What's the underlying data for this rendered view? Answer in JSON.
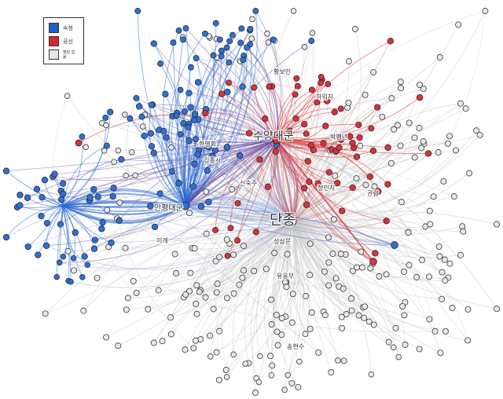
{
  "legend": {
    "items": [
      {
        "label": "숙청",
        "color": "#1f5fc8"
      },
      {
        "label": "공신",
        "color": "#d8262e"
      },
      {
        "label": "해당 없음",
        "color": "#e6e6e6"
      }
    ]
  },
  "colors": {
    "blue_node": "#2f6fd6",
    "red_node": "#d8323a",
    "gray_node": "#e8e8e8",
    "blue_edge": "#2a68d0",
    "red_edge": "#d83a3f",
    "purple_edge": "#6a4a9e",
    "gray_edge": "#c8c8c8"
  },
  "labels": {
    "danjong": "단종",
    "suyang": "수양대군",
    "anpyeong": "안평대군",
    "l1": "한명회",
    "l2": "김종서",
    "l3": "황보인",
    "l4": "정인지",
    "l5": "박팽년",
    "l6": "성삼문",
    "l7": "유응부",
    "l8": "송현수",
    "l9": "권람",
    "l10": "신숙주",
    "l11": "이개",
    "l12": "하위지"
  }
}
